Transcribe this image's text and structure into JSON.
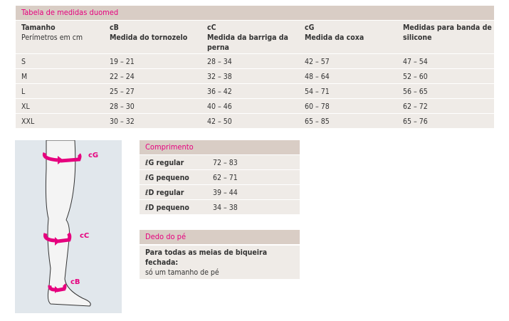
{
  "size_table": {
    "title": "Tabela de medidas duomed",
    "headers": [
      {
        "line1": "Tamanho",
        "line2": "Perímetros em cm"
      },
      {
        "line1": "cB",
        "line2": "Medida do tornozelo"
      },
      {
        "line1": "cC",
        "line2": "Medida da barriga da perna"
      },
      {
        "line1": "cG",
        "line2": "Medida da coxa"
      },
      {
        "line1": "Medidas para banda de silicone",
        "line2": ""
      }
    ],
    "rows": [
      [
        "S",
        "19 – 21",
        "28 – 34",
        "42 – 57",
        "47 – 54"
      ],
      [
        "M",
        "22 – 24",
        "32 – 38",
        "48 – 64",
        "52 – 60"
      ],
      [
        "L",
        "25 – 27",
        "36 – 42",
        "54 – 71",
        "56 – 65"
      ],
      [
        "XL",
        "28 – 30",
        "40 – 46",
        "60 – 78",
        "62 – 72"
      ],
      [
        "XXL",
        "30 – 32",
        "42 – 50",
        "65 – 85",
        "65 – 76"
      ]
    ]
  },
  "diagram": {
    "labels": [
      "cG",
      "cC",
      "cB"
    ]
  },
  "length_table": {
    "title": "Comprimento",
    "rows": [
      {
        "label": "ℓG regular",
        "value": "72 – 83"
      },
      {
        "label": "ℓG pequeno",
        "value": "62 – 71"
      },
      {
        "label": "ℓD regular",
        "value": "39 – 44"
      },
      {
        "label": "ℓD pequeno",
        "value": "34 – 38"
      }
    ]
  },
  "toe": {
    "title": "Dedo do pé",
    "bold_text": "Para todas as meias de biqueira fechada:",
    "text": "só um tamanho de pé"
  },
  "colors": {
    "accent": "#e6007e",
    "band": "#d9cdc5",
    "row": "#efebe7",
    "diagram_bg": "#e1e7ec"
  }
}
